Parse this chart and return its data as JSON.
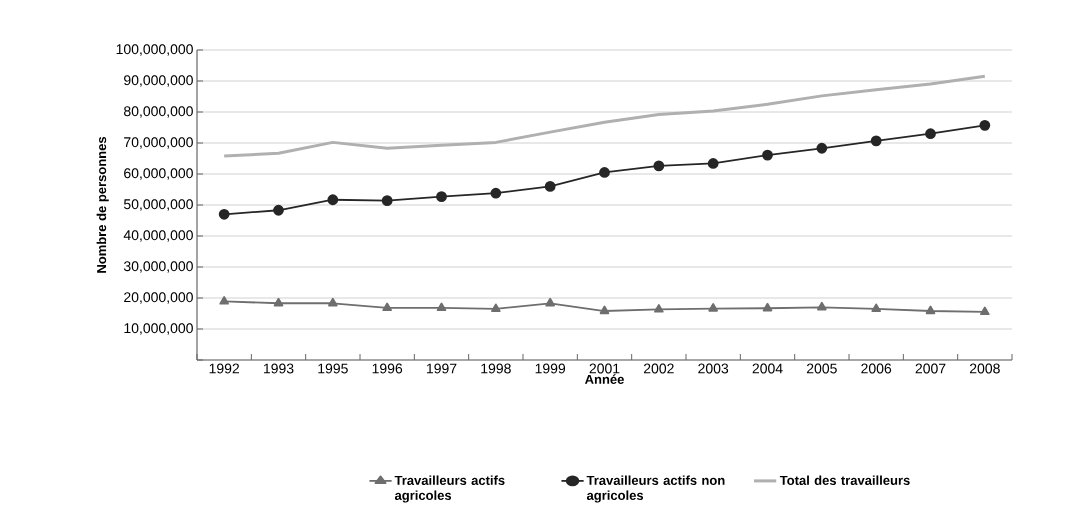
{
  "chart_data": {
    "type": "line",
    "xlabel": "Année",
    "ylabel": "Nombre de personnes",
    "categories": [
      "1992",
      "1993",
      "1995",
      "1996",
      "1997",
      "1998",
      "1999",
      "2001",
      "2002",
      "2003",
      "2004",
      "2005",
      "2006",
      "2007",
      "2008"
    ],
    "series": [
      {
        "name": "Travailleurs actifs agricoles",
        "color": "#6e6e6e",
        "marker": "triangle",
        "values": [
          18900000,
          18300000,
          18300000,
          16800000,
          16800000,
          16500000,
          18300000,
          15800000,
          16300000,
          16600000,
          16700000,
          17000000,
          16500000,
          15800000,
          15500000
        ]
      },
      {
        "name": "Travailleurs actifs non agricoles",
        "color": "#262626",
        "marker": "circle",
        "values": [
          47000000,
          48300000,
          51700000,
          51400000,
          52700000,
          53800000,
          56000000,
          60500000,
          62600000,
          63400000,
          66100000,
          68300000,
          70700000,
          73000000,
          75700000
        ]
      },
      {
        "name": "Total des travailleurs",
        "color": "#b0b0b0",
        "marker": "none",
        "values": [
          65800000,
          66700000,
          70200000,
          68300000,
          69300000,
          70200000,
          73500000,
          76700000,
          79200000,
          80300000,
          82500000,
          85200000,
          87200000,
          89000000,
          91500000
        ]
      }
    ],
    "ylim": [
      0,
      100000000
    ],
    "yticks": [
      {
        "value": 0,
        "label": null
      },
      {
        "value": 10000000,
        "label": "10,000,000"
      },
      {
        "value": 20000000,
        "label": "20,000,000"
      },
      {
        "value": 30000000,
        "label": "30,000,000"
      },
      {
        "value": 40000000,
        "label": "40,000,000"
      },
      {
        "value": 50000000,
        "label": "50,000,000"
      },
      {
        "value": 60000000,
        "label": "60,000,000"
      },
      {
        "value": 70000000,
        "label": "70,000,000"
      },
      {
        "value": 80000000,
        "label": "80,000,000"
      },
      {
        "value": 90000000,
        "label": "90,000,000"
      },
      {
        "value": 100000000,
        "label": "100,000,000"
      }
    ],
    "grid": "y",
    "legend": "bottom",
    "line_style": "solid"
  }
}
